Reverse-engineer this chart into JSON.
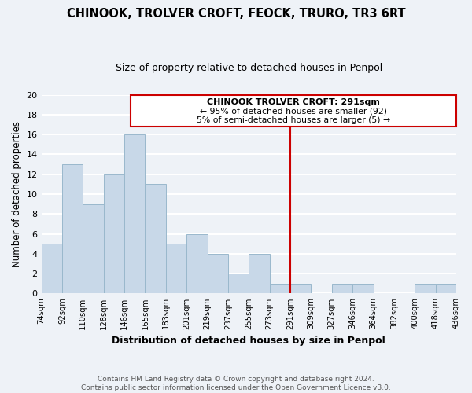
{
  "title": "CHINOOK, TROLVER CROFT, FEOCK, TRURO, TR3 6RT",
  "subtitle": "Size of property relative to detached houses in Penpol",
  "xlabel": "Distribution of detached houses by size in Penpol",
  "ylabel": "Number of detached properties",
  "bins": [
    "74sqm",
    "92sqm",
    "110sqm",
    "128sqm",
    "146sqm",
    "165sqm",
    "183sqm",
    "201sqm",
    "219sqm",
    "237sqm",
    "255sqm",
    "273sqm",
    "291sqm",
    "309sqm",
    "327sqm",
    "346sqm",
    "364sqm",
    "382sqm",
    "400sqm",
    "418sqm",
    "436sqm"
  ],
  "counts": [
    5,
    13,
    9,
    12,
    16,
    11,
    5,
    6,
    4,
    2,
    4,
    1,
    1,
    0,
    1,
    1,
    0,
    0,
    1,
    1
  ],
  "bar_color": "#c8d8e8",
  "bar_edge_color": "#9ab8cc",
  "vline_x_index": 12,
  "vline_color": "#cc0000",
  "annotation_title": "CHINOOK TROLVER CROFT: 291sqm",
  "annotation_line1": "← 95% of detached houses are smaller (92)",
  "annotation_line2": "5% of semi-detached houses are larger (5) →",
  "annotation_box_color": "#ffffff",
  "annotation_box_edge": "#cc0000",
  "ylim": [
    0,
    20
  ],
  "yticks": [
    0,
    2,
    4,
    6,
    8,
    10,
    12,
    14,
    16,
    18,
    20
  ],
  "footer_line1": "Contains HM Land Registry data © Crown copyright and database right 2024.",
  "footer_line2": "Contains public sector information licensed under the Open Government Licence v3.0.",
  "bg_color": "#eef2f7",
  "grid_color": "#ffffff"
}
